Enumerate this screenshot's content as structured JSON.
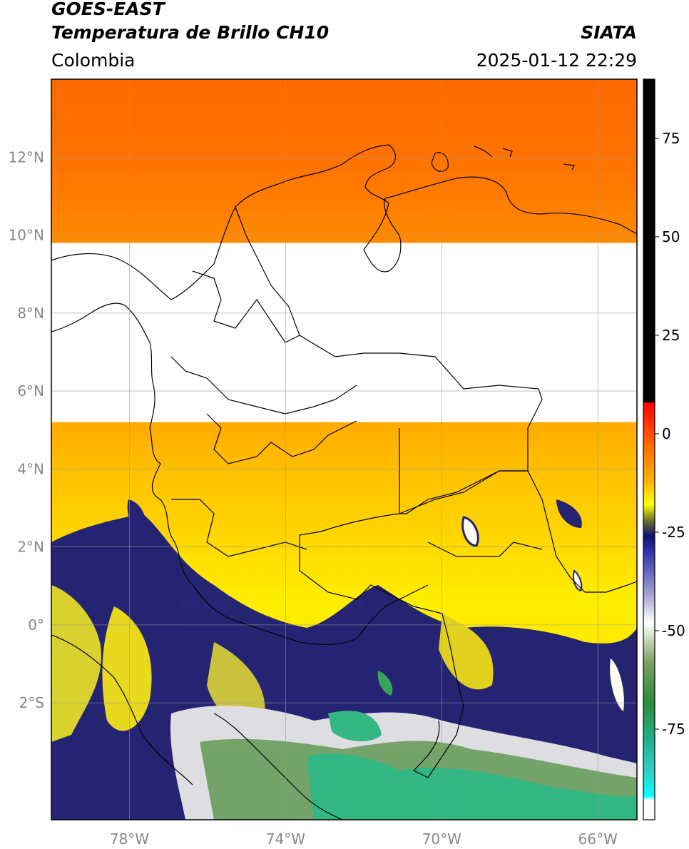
{
  "header": {
    "satellite": "GOES-EAST",
    "product": "Temperatura de Brillo CH10",
    "region": "Colombia",
    "brand": "SIATA",
    "timestamp": "2025-01-12 22:29"
  },
  "map": {
    "lon_range": [
      -80,
      -65
    ],
    "lat_range": [
      -5,
      14
    ],
    "lat_ticks": [
      {
        "value": 12,
        "label": "12°N"
      },
      {
        "value": 10,
        "label": "10°N"
      },
      {
        "value": 8,
        "label": "8°N"
      },
      {
        "value": 6,
        "label": "6°N"
      },
      {
        "value": 4,
        "label": "4°N"
      },
      {
        "value": 2,
        "label": "2°N"
      },
      {
        "value": 0,
        "label": "0°"
      },
      {
        "value": -2,
        "label": "2°S"
      }
    ],
    "lon_ticks": [
      {
        "value": -78,
        "label": "78°W"
      },
      {
        "value": -74,
        "label": "74°W"
      },
      {
        "value": -70,
        "label": "70°W"
      },
      {
        "value": -66,
        "label": "66°W"
      }
    ],
    "missing_data_band_lat": [
      5.2,
      9.8
    ],
    "gridlines": true
  },
  "colorbar": {
    "range": [
      -98,
      90
    ],
    "ticks": [
      {
        "value": 75,
        "label": "75"
      },
      {
        "value": 50,
        "label": "50"
      },
      {
        "value": 25,
        "label": "25"
      },
      {
        "value": 0,
        "label": "0"
      },
      {
        "value": -25,
        "label": "-25"
      },
      {
        "value": -50,
        "label": "-50"
      },
      {
        "value": -75,
        "label": "-75"
      }
    ],
    "stops": [
      {
        "value": 90,
        "color": "#000000"
      },
      {
        "value": 8,
        "color": "#000000"
      },
      {
        "value": 7.9,
        "color": "#ff0000"
      },
      {
        "value": -3,
        "color": "#ff6a00"
      },
      {
        "value": -12,
        "color": "#ffb300"
      },
      {
        "value": -18,
        "color": "#ffff00"
      },
      {
        "value": -22,
        "color": "#707030"
      },
      {
        "value": -26,
        "color": "#10106e"
      },
      {
        "value": -30,
        "color": "#3333aa"
      },
      {
        "value": -40,
        "color": "#9999cc"
      },
      {
        "value": -48,
        "color": "#ffffff"
      },
      {
        "value": -58,
        "color": "#7aa060"
      },
      {
        "value": -68,
        "color": "#2e8b3a"
      },
      {
        "value": -78,
        "color": "#20b090"
      },
      {
        "value": -86,
        "color": "#30d0c8"
      },
      {
        "value": -92,
        "color": "#00ffff"
      },
      {
        "value": -93,
        "color": "#ffffff"
      },
      {
        "value": -98,
        "color": "#ffffff"
      }
    ]
  }
}
